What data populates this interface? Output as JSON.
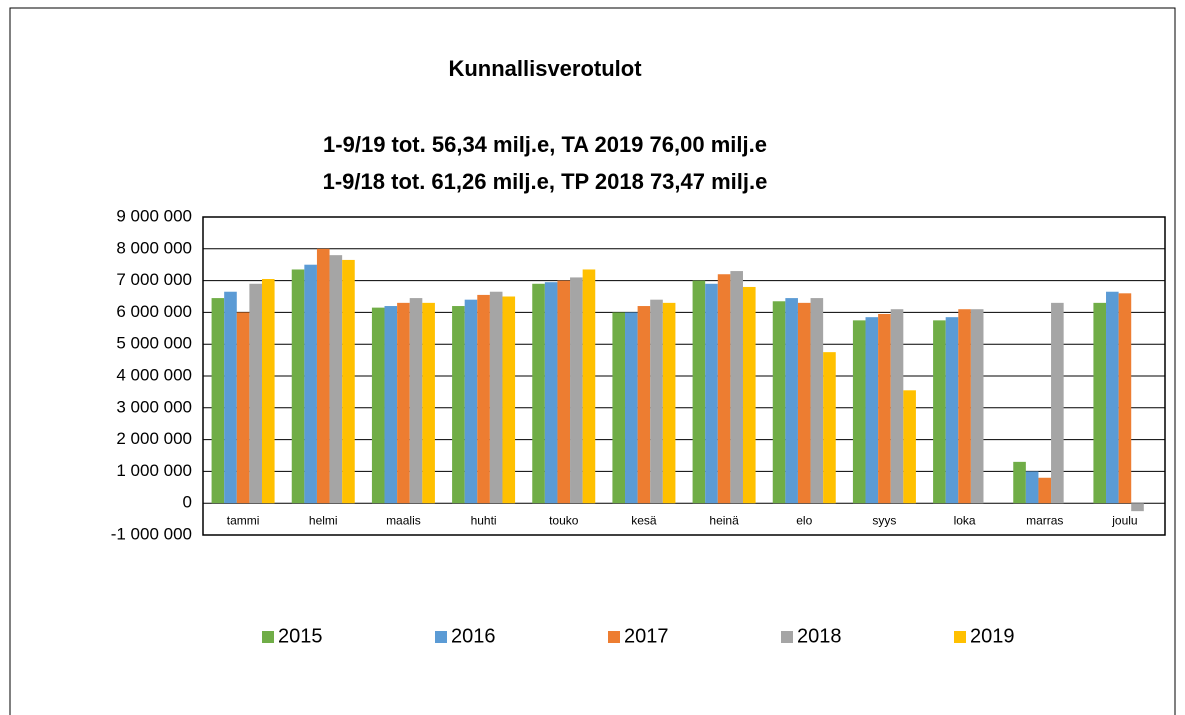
{
  "chart_data": {
    "type": "bar",
    "title": "Kunnallisverotulot",
    "subtitle": [
      "1-9/19 tot. 56,34 milj.e, TA 2019  76,00 milj.e",
      "1-9/18 tot. 61,26 milj.e, TP 2018  73,47 milj.e"
    ],
    "categories": [
      "tammi",
      "helmi",
      "maalis",
      "huhti",
      "touko",
      "kesä",
      "heinä",
      "elo",
      "syys",
      "loka",
      "marras",
      "joulu"
    ],
    "series": [
      {
        "name": "2015",
        "color": "#70ad47",
        "values": [
          6450000,
          7350000,
          6150000,
          6200000,
          6900000,
          6000000,
          7000000,
          6350000,
          5750000,
          5750000,
          1300000,
          6300000
        ]
      },
      {
        "name": "2016",
        "color": "#5b9bd5",
        "values": [
          6650000,
          7500000,
          6200000,
          6400000,
          6950000,
          6000000,
          6900000,
          6450000,
          5850000,
          5850000,
          1000000,
          6650000
        ]
      },
      {
        "name": "2017",
        "color": "#ed7d31",
        "values": [
          6000000,
          8000000,
          6300000,
          6550000,
          7000000,
          6200000,
          7200000,
          6300000,
          5950000,
          6100000,
          800000,
          6600000
        ]
      },
      {
        "name": "2018",
        "color": "#a5a5a5",
        "values": [
          6900000,
          7800000,
          6450000,
          6650000,
          7100000,
          6400000,
          7300000,
          6450000,
          6100000,
          6100000,
          6300000,
          -250000
        ]
      },
      {
        "name": "2019",
        "color": "#ffc000",
        "values": [
          7050000,
          7650000,
          6300000,
          6500000,
          7350000,
          6300000,
          6800000,
          4750000,
          3550000,
          null,
          null,
          null
        ]
      }
    ],
    "ylim": [
      -1000000,
      9000000
    ],
    "yticks": [
      {
        "value": -1000000,
        "label": "-1 000 000"
      },
      0,
      {
        "value": 1000000,
        "label": "1 000 000"
      },
      {
        "value": 2000000,
        "label": "2 000 000"
      },
      {
        "value": 3000000,
        "label": "3 000 000"
      },
      {
        "value": 4000000,
        "label": "4 000 000"
      },
      {
        "value": 5000000,
        "label": "5 000 000"
      },
      {
        "value": 6000000,
        "label": "6 000 000"
      },
      {
        "value": 7000000,
        "label": "7 000 000"
      },
      {
        "value": 8000000,
        "label": "8 000 000"
      },
      {
        "value": 9000000,
        "label": "9 000 000"
      }
    ],
    "grid": true,
    "legend": "bottom"
  }
}
